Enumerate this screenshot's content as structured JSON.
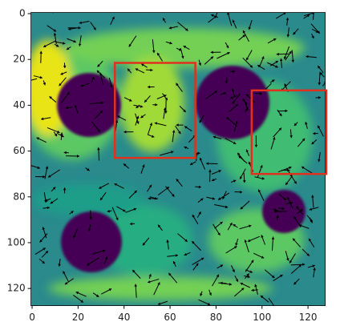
{
  "chart_data": {
    "type": "image",
    "xlim": [
      -0.5,
      127.5
    ],
    "ylim": [
      127.5,
      -0.5
    ],
    "xticks": [
      0,
      20,
      40,
      60,
      80,
      100,
      120
    ],
    "yticks": [
      0,
      20,
      40,
      60,
      80,
      100,
      120
    ],
    "regions": [
      {
        "x": [
          36,
          71
        ],
        "y": [
          21.5,
          63
        ]
      },
      {
        "x": [
          95.5,
          128
        ],
        "y": [
          33.5,
          70
        ]
      }
    ],
    "region_color": "#e0301e"
  }
}
